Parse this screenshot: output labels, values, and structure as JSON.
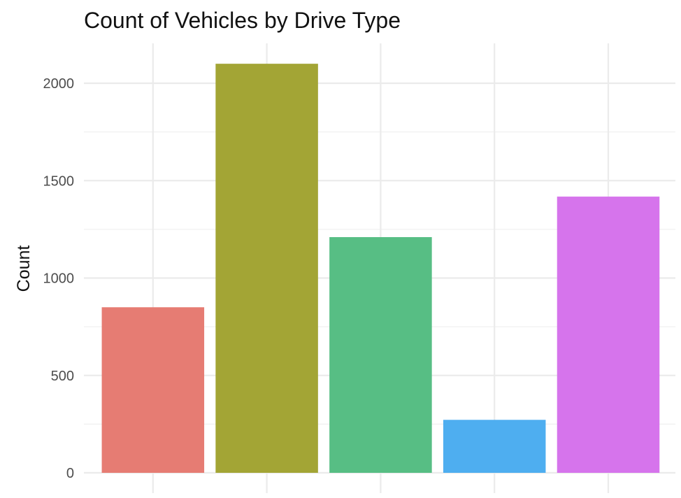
{
  "chart_data": {
    "type": "bar",
    "title": "Count of Vehicles by Drive Type",
    "xlabel": "",
    "ylabel": "Count",
    "categories": [
      "",
      "",
      "",
      "",
      ""
    ],
    "values": [
      850,
      2100,
      1210,
      272,
      1418
    ],
    "colors": [
      "#E67C73",
      "#A3A535",
      "#57BE84",
      "#4EAEF0",
      "#D674EC"
    ],
    "ylim": [
      0,
      2200
    ],
    "yticks": [
      0,
      500,
      1000,
      1500,
      2000
    ],
    "grid": true,
    "legend": "none"
  }
}
